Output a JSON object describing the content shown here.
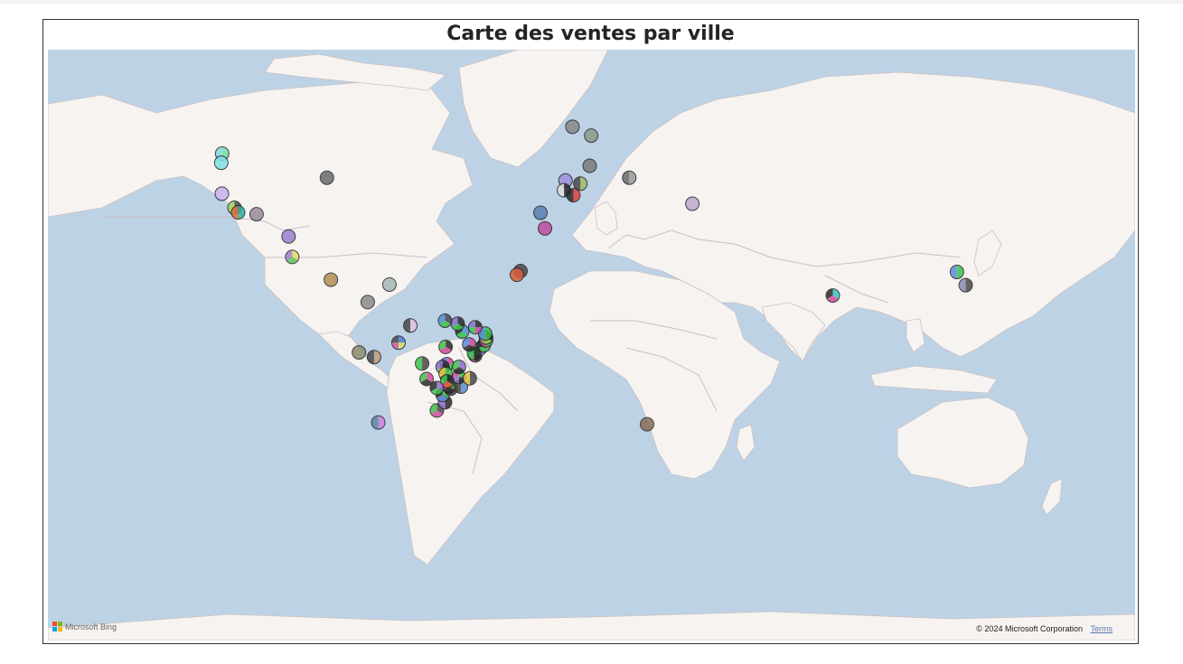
{
  "title": "Carte des ventes par ville",
  "attribution": {
    "provider": "Microsoft Bing",
    "copyright": "© 2024 Microsoft Corporation",
    "terms": "Terms"
  },
  "colors": {
    "ocean": "#bdd2e5",
    "land": "#f6f3f1",
    "border": "#c9c2c2",
    "marker_stroke": "#222222",
    "palette": [
      "#4a4a4a",
      "#3cc34a",
      "#8a6fd0",
      "#d04aa0",
      "#5a8fd8",
      "#e0c040",
      "#d8603a",
      "#6fd0c0",
      "#2a2a2a",
      "#a0c060"
    ]
  },
  "markers": [
    {
      "city": "Seattle",
      "lon": -122.3,
      "lat": 47.6,
      "colors": [
        "#6fe0a0",
        "#7fd8e0"
      ]
    },
    {
      "city": "Portland",
      "lon": -122.6,
      "lat": 45.5,
      "colors": [
        "#80e0e8"
      ]
    },
    {
      "city": "San Francisco",
      "lon": -122.4,
      "lat": 37.8,
      "colors": [
        "#c8b0f0"
      ]
    },
    {
      "city": "Los Angeles",
      "lon": -118.2,
      "lat": 34.0,
      "colors": [
        "#4a4a4a",
        "#a0d060"
      ]
    },
    {
      "city": "San Diego",
      "lon": -117.0,
      "lat": 32.7,
      "colors": [
        "#2ab0a0",
        "#e07040"
      ]
    },
    {
      "city": "Tucson",
      "lon": -110.9,
      "lat": 32.2,
      "colors": [
        "#9a8a9a"
      ]
    },
    {
      "city": "Chicago",
      "lon": -87.6,
      "lat": 41.9,
      "colors": [
        "#6a6a6a"
      ]
    },
    {
      "city": "Monterrey",
      "lon": -100.3,
      "lat": 25.7,
      "colors": [
        "#9a80d0"
      ]
    },
    {
      "city": "Mexico City",
      "lon": -99.1,
      "lat": 19.4,
      "colors": [
        "#e0e060",
        "#60c060",
        "#a080d0"
      ]
    },
    {
      "city": "Managua",
      "lon": -86.3,
      "lat": 12.1,
      "colors": [
        "#b09050"
      ]
    },
    {
      "city": "Caracas",
      "lon": -66.9,
      "lat": 10.5,
      "colors": [
        "#a8b8b8"
      ]
    },
    {
      "city": "Bogota",
      "lon": -74.1,
      "lat": 4.7,
      "colors": [
        "#8a8a8a"
      ]
    },
    {
      "city": "Manaus",
      "lon": -60.0,
      "lat": -3.1,
      "colors": [
        "#e8c0e0",
        "#4a4a4a"
      ]
    },
    {
      "city": "Porto Velho",
      "lon": -63.9,
      "lat": -8.8,
      "colors": [
        "#5080d0",
        "#e0e060",
        "#d060a0",
        "#4a4a4a"
      ]
    },
    {
      "city": "Lima",
      "lon": -77.0,
      "lat": -12.0,
      "colors": [
        "#8a8a6a"
      ]
    },
    {
      "city": "Cusco",
      "lon": -72.0,
      "lat": -13.5,
      "colors": [
        "#c0a080",
        "#4a4a4a"
      ]
    },
    {
      "city": "Santiago",
      "lon": -70.6,
      "lat": -33.4,
      "colors": [
        "#d080e0",
        "#5a8aa0"
      ]
    },
    {
      "city": "Porto Alegre",
      "lon": -51.2,
      "lat": -30.0,
      "colors": [
        "#4a4a4a",
        "#d04aa0",
        "#3cc34a"
      ]
    },
    {
      "city": "Florianopolis",
      "lon": -48.5,
      "lat": -27.6,
      "colors": [
        "#2a2a2a",
        "#8a6fd0"
      ]
    },
    {
      "city": "Curitiba",
      "lon": -49.3,
      "lat": -25.4,
      "colors": [
        "#3cc34a",
        "#5a8fd8",
        "#2a2a2a"
      ]
    },
    {
      "city": "Sao Paulo",
      "lon": -46.6,
      "lat": -23.5,
      "colors": [
        "#d8603a",
        "#4a4a4a",
        "#e0c040"
      ]
    },
    {
      "city": "Campinas",
      "lon": -47.1,
      "lat": -22.9,
      "colors": [
        "#3cc34a",
        "#2a2a2a",
        "#d04aa0"
      ]
    },
    {
      "city": "Rio de Janeiro",
      "lon": -43.2,
      "lat": -22.9,
      "colors": [
        "#5a8fd8",
        "#4a4a4a"
      ]
    },
    {
      "city": "Belo Horizonte",
      "lon": -43.9,
      "lat": -19.9,
      "colors": [
        "#3cc34a",
        "#2a2a2a",
        "#8a6fd0",
        "#d04aa0"
      ]
    },
    {
      "city": "Vitoria",
      "lon": -40.3,
      "lat": -20.3,
      "colors": [
        "#4a4a4a",
        "#e0c040"
      ]
    },
    {
      "city": "Brasilia",
      "lon": -47.9,
      "lat": -15.8,
      "colors": [
        "#d04aa0",
        "#3cc34a",
        "#2a2a2a",
        "#5a8fd8"
      ]
    },
    {
      "city": "Goiania",
      "lon": -49.3,
      "lat": -16.7,
      "colors": [
        "#2a2a2a",
        "#a0c060",
        "#8a6fd0"
      ]
    },
    {
      "city": "Cuiaba",
      "lon": -56.1,
      "lat": -15.6,
      "colors": [
        "#4a4a4a",
        "#3cc34a"
      ]
    },
    {
      "city": "Campo Grande",
      "lon": -54.6,
      "lat": -20.5,
      "colors": [
        "#d04aa0",
        "#2a2a2a",
        "#3cc34a"
      ]
    },
    {
      "city": "Salvador",
      "lon": -38.5,
      "lat": -12.97,
      "colors": [
        "#3cc34a",
        "#2a2a2a",
        "#d04aa0",
        "#5a8fd8"
      ]
    },
    {
      "city": "Aracaju",
      "lon": -37.1,
      "lat": -10.9,
      "colors": [
        "#8a6fd0",
        "#3cc34a"
      ]
    },
    {
      "city": "Maceio",
      "lon": -35.7,
      "lat": -9.7,
      "colors": [
        "#d04aa0",
        "#3cc34a",
        "#2a2a2a"
      ]
    },
    {
      "city": "Recife",
      "lon": -34.9,
      "lat": -8.05,
      "colors": [
        "#3cc34a",
        "#d04aa0"
      ]
    },
    {
      "city": "Joao Pessoa",
      "lon": -34.9,
      "lat": -7.1,
      "colors": [
        "#2a2a2a",
        "#a0c060",
        "#3cc34a"
      ]
    },
    {
      "city": "Natal",
      "lon": -35.2,
      "lat": -5.8,
      "colors": [
        "#3cc34a",
        "#5a8fd8"
      ]
    },
    {
      "city": "Fortaleza",
      "lon": -38.5,
      "lat": -3.7,
      "colors": [
        "#2a2a2a",
        "#d04aa0",
        "#3cc34a",
        "#8a6fd0"
      ]
    },
    {
      "city": "Teresina",
      "lon": -42.8,
      "lat": -5.1,
      "colors": [
        "#5a8fd8",
        "#3cc34a",
        "#2a2a2a"
      ]
    },
    {
      "city": "Sao Luis",
      "lon": -44.3,
      "lat": -2.5,
      "colors": [
        "#2a2a2a",
        "#3cc34a",
        "#8a6fd0"
      ]
    },
    {
      "city": "Belem",
      "lon": -48.5,
      "lat": -1.5,
      "colors": [
        "#4a4a4a",
        "#3cc34a",
        "#5a8fd8"
      ]
    },
    {
      "city": "Palmas",
      "lon": -48.3,
      "lat": -10.2,
      "colors": [
        "#2a2a2a",
        "#d04aa0",
        "#3cc34a"
      ]
    },
    {
      "city": "Uberlandia",
      "lon": -48.3,
      "lat": -18.9,
      "colors": [
        "#3cc34a",
        "#2a2a2a",
        "#e0c040"
      ]
    },
    {
      "city": "Montes Claros",
      "lon": -43.9,
      "lat": -16.7,
      "colors": [
        "#8a6fd0",
        "#2a2a2a",
        "#3cc34a"
      ]
    },
    {
      "city": "Feira de Santana",
      "lon": -38.9,
      "lat": -12.3,
      "colors": [
        "#2a2a2a",
        "#3cc34a"
      ]
    },
    {
      "city": "Juazeiro",
      "lon": -40.5,
      "lat": -9.4,
      "colors": [
        "#d04aa0",
        "#2a2a2a",
        "#5a8fd8"
      ]
    },
    {
      "city": "Ribeirao Preto",
      "lon": -47.8,
      "lat": -21.2,
      "colors": [
        "#2a2a2a",
        "#d8603a",
        "#3cc34a"
      ]
    },
    {
      "city": "Londrina",
      "lon": -51.2,
      "lat": -23.3,
      "colors": [
        "#8a6fd0",
        "#3cc34a",
        "#2a2a2a"
      ]
    },
    {
      "city": "Dublin",
      "lon": -6.3,
      "lat": 53.3,
      "colors": [
        "#8a8a8a"
      ]
    },
    {
      "city": "London",
      "lon": -0.1,
      "lat": 51.5,
      "colors": [
        "#8a9a8a"
      ]
    },
    {
      "city": "Bordeaux",
      "lon": -0.6,
      "lat": 44.8,
      "colors": [
        "#7a7a7a"
      ]
    },
    {
      "city": "Porto",
      "lon": -8.6,
      "lat": 41.2,
      "colors": [
        "#a090e0"
      ]
    },
    {
      "city": "Madrid",
      "lon": -3.7,
      "lat": 40.4,
      "colors": [
        "#a0c060",
        "#4a4a4a"
      ]
    },
    {
      "city": "Lisbon",
      "lon": -9.1,
      "lat": 38.7,
      "colors": [
        "#2a2a2a",
        "#e0e0e0"
      ]
    },
    {
      "city": "Seville",
      "lon": -6.0,
      "lat": 37.4,
      "colors": [
        "#e04040",
        "#2a2a2a"
      ]
    },
    {
      "city": "Rome",
      "lon": 12.5,
      "lat": 41.9,
      "colors": [
        "#9a9a9a",
        "#6a6a6a"
      ]
    },
    {
      "city": "Madeira",
      "lon": -16.9,
      "lat": 32.6,
      "colors": [
        "#5a80b0"
      ]
    },
    {
      "city": "Canary Islands",
      "lon": -15.4,
      "lat": 28.1,
      "colors": [
        "#c04aa0"
      ]
    },
    {
      "city": "Cape Verde",
      "lon": -23.5,
      "lat": 14.9,
      "colors": [
        "#4a4a4a"
      ]
    },
    {
      "city": "Praia",
      "lon": -24.7,
      "lat": 13.7,
      "colors": [
        "#d8603a"
      ]
    },
    {
      "city": "Cyprus",
      "lon": 33.4,
      "lat": 35.1,
      "colors": [
        "#c0a8d0"
      ]
    },
    {
      "city": "Colombo",
      "lon": 79.9,
      "lat": 6.9,
      "colors": [
        "#3cc3c0",
        "#d04aa0",
        "#2a2a2a"
      ]
    },
    {
      "city": "Cape Town",
      "lon": 18.4,
      "lat": -33.9,
      "colors": [
        "#8a6a5a"
      ]
    },
    {
      "city": "Manila",
      "lon": 121.0,
      "lat": 14.6,
      "colors": [
        "#3cc34a",
        "#5a8fd8"
      ]
    },
    {
      "city": "Cebu",
      "lon": 123.9,
      "lat": 10.3,
      "colors": [
        "#4a4a4a",
        "#8a8ab0"
      ]
    }
  ]
}
